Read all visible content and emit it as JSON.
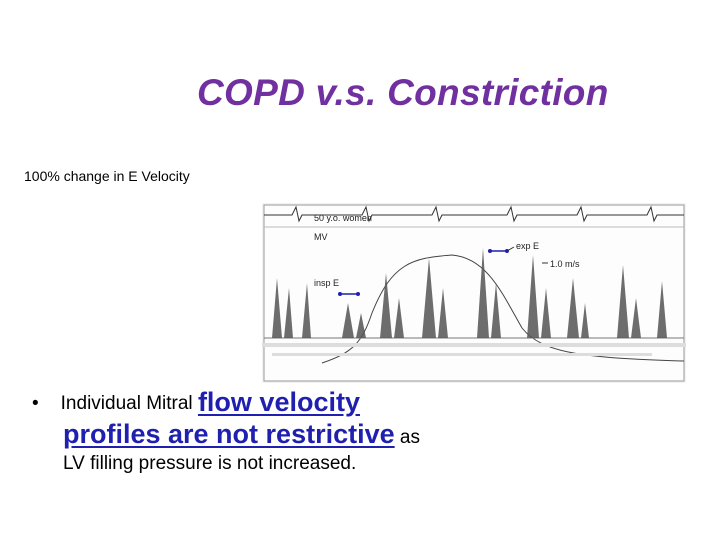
{
  "title": "COPD v.s. Constriction",
  "subtitle": "100% change in E Velocity",
  "figure": {
    "patient_label": "50 y.o. women",
    "mv_label": "MV",
    "exp_label": "exp E",
    "insp_label": "insp E",
    "scale_label": "1.0 m/s"
  },
  "bullet": {
    "prefix": "Individual Mitral",
    "highlight_line1": "flow velocity",
    "highlight_line2": "profiles are not restrictive",
    "suffix_line2": "as",
    "line3": "LV filling pressure is not increased."
  },
  "colors": {
    "title": "#7030a0",
    "highlight": "#1f1fb0",
    "arrows": "#1f1fb0"
  }
}
